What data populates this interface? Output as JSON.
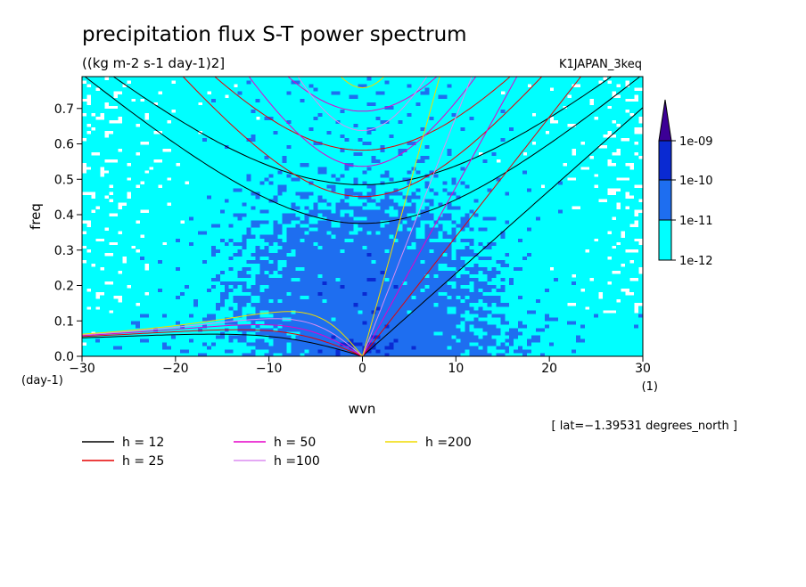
{
  "chart_data": {
    "type": "heatmap",
    "title": "precipitation flux S-T power spectrum",
    "subtitle": "((kg m-2 s-1 day-1)2]",
    "run_label": "K1JAPAN_3keq",
    "xlabel": "wvn",
    "ylabel": "freq",
    "x_unit": "(1)",
    "y_unit": "(day-1)",
    "xlim": [
      -30,
      30
    ],
    "ylim": [
      0,
      0.79
    ],
    "x_ticks": [
      -30,
      -20,
      -10,
      0,
      10,
      20,
      30
    ],
    "x_tick_labels": [
      "−30",
      "−20",
      "−10",
      "0",
      "10",
      "20",
      "30"
    ],
    "y_ticks": [
      0,
      0.1,
      0.2,
      0.3,
      0.4,
      0.5,
      0.6,
      0.7
    ],
    "y_tick_labels": [
      "0.0",
      "0.1",
      "0.2",
      "0.3",
      "0.4",
      "0.5",
      "0.6",
      "0.7"
    ],
    "footnote": "[ lat=−1.39531 degrees_north ]",
    "colorbar": {
      "levels": [
        "1e-12",
        "1e-11",
        "1e-10",
        "1e-09"
      ],
      "colors": [
        "#ffffff",
        "#00ffff",
        "#1e6ef0",
        "#0a2ad2",
        "#3c0096"
      ]
    },
    "dispersion_curves": [
      {
        "label": "h = 12",
        "h": 12,
        "color": "#000000"
      },
      {
        "label": "h = 25",
        "h": 25,
        "color": "#e60000"
      },
      {
        "label": "h = 50",
        "h": 50,
        "color": "#e600c8"
      },
      {
        "label": "h =100",
        "h": 100,
        "color": "#dc8cf0"
      },
      {
        "label": "h =200",
        "h": 200,
        "color": "#f0dc00"
      }
    ]
  }
}
